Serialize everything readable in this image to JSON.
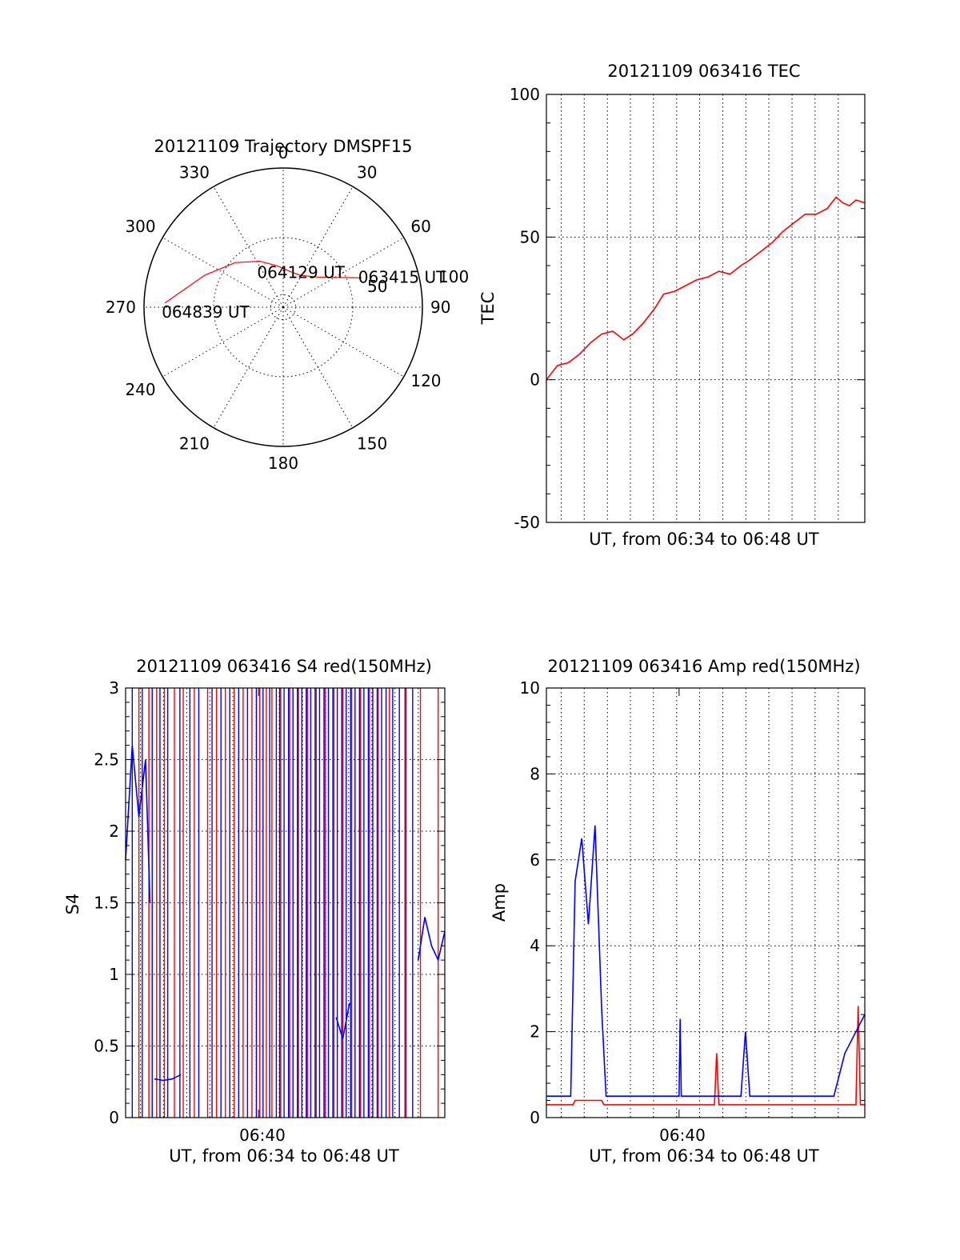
{
  "chart_data": [
    {
      "id": "trajectory",
      "type": "polar",
      "title": "20121109 Trajectory DMSPF15",
      "angle_labels": [
        "0",
        "30",
        "60",
        "90",
        "120",
        "150",
        "180",
        "210",
        "240",
        "270",
        "300",
        "330"
      ],
      "radial_labels": [
        "50",
        "100"
      ],
      "rmax": 100,
      "trajectory": {
        "color": "#ff0000",
        "points": [
          [
            69.5,
            60
          ],
          [
            49,
            33
          ],
          [
            28,
            26
          ],
          [
            12,
            26
          ],
          [
            -8,
            30
          ],
          [
            -27,
            37
          ],
          [
            -47,
            47
          ],
          [
            -68,
            61
          ],
          [
            -88,
            85
          ]
        ]
      },
      "annotations": [
        {
          "text": "063415 UT",
          "az": 69.5,
          "r": 60
        },
        {
          "text": "064129 UT",
          "az": 12,
          "r": 26
        },
        {
          "text": "064839 UT",
          "az": -88,
          "r": 85
        }
      ]
    },
    {
      "id": "tec",
      "type": "line",
      "title": "20121109 063416 TEC",
      "ylabel": "TEC",
      "xlabel": "UT, from 06:34 to 06:48 UT",
      "xlim": [
        0,
        14.4
      ],
      "ylim": [
        -50,
        100
      ],
      "yticks": [
        "100",
        "50",
        "0",
        "-50"
      ],
      "ygrid": [
        50,
        0
      ],
      "xgrid": [
        0.67,
        1.71,
        2.76,
        3.8,
        4.84,
        5.89,
        6.93,
        7.98,
        9.02,
        10.06,
        11.11,
        12.15,
        13.2
      ],
      "series": [
        {
          "color": "#ff0000",
          "x": [
            0,
            0.5,
            1,
            1.5,
            2,
            2.5,
            3,
            3.5,
            3.9,
            4.4,
            4.9,
            5.3,
            5.8,
            6.3,
            6.8,
            7.3,
            7.8,
            8.3,
            8.8,
            9.2,
            9.7,
            10.2,
            10.7,
            11.2,
            11.7,
            12.2,
            12.7,
            13.1,
            13.4,
            13.7,
            14.0,
            14.4
          ],
          "y": [
            0,
            5,
            6,
            9,
            13,
            16,
            17,
            14,
            16,
            20,
            25,
            30,
            31,
            33,
            35,
            36,
            38,
            37,
            40,
            42,
            45,
            48,
            52,
            55,
            58,
            58,
            60,
            64,
            62,
            61,
            63,
            62
          ]
        }
      ]
    },
    {
      "id": "s4",
      "type": "line",
      "title": "20121109 063416 S4 red(150MHz)",
      "ylabel": "S4",
      "xlabel": "UT, from 06:34 to 06:48 UT",
      "xtick_label": "06:40",
      "xtick_value": 6,
      "xlim": [
        0,
        14.4
      ],
      "ylim": [
        0,
        3
      ],
      "yticks": [
        "3",
        "2.5",
        "2",
        "1.5",
        "1",
        "0.5",
        "0"
      ],
      "ygrid": [
        2.5,
        2,
        1.5,
        1,
        0.5
      ],
      "xgrid": [
        0.67,
        1.71,
        2.76,
        3.8,
        4.84,
        5.89,
        6.93,
        7.98,
        9.02,
        10.06,
        11.11,
        12.15,
        13.2
      ],
      "spikes": [
        {
          "color": "#ff0000",
          "x": [
            0.6,
            1.05,
            1.4,
            1.75,
            2.2,
            2.6,
            3.1,
            3.7,
            4.1,
            4.5,
            4.9,
            5.3,
            5.7,
            6.05,
            6.35,
            6.6,
            7.0,
            7.4,
            7.8,
            8.2,
            8.6,
            9.0,
            9.4,
            9.8,
            10.2,
            10.6,
            11.0,
            11.4,
            11.9,
            12.6,
            13.3,
            14.1
          ]
        },
        {
          "color": "#0000ff",
          "x": [
            0.3,
            0.75,
            1.2,
            1.55,
            1.9,
            2.45,
            2.9,
            3.3,
            3.9,
            4.3,
            4.7,
            5.1,
            5.5,
            5.9,
            6.2,
            6.5,
            6.8,
            6.95,
            7.15,
            7.35,
            7.55,
            7.75,
            7.95,
            8.15,
            8.35,
            8.55,
            8.75,
            8.95,
            9.15,
            9.35,
            9.55,
            9.75,
            9.95,
            10.15,
            10.35,
            10.55,
            10.75,
            10.95,
            11.15,
            11.35,
            11.55,
            11.75,
            12.05,
            12.35,
            12.65,
            12.95
          ]
        }
      ],
      "series": [
        {
          "color": "#0000ff",
          "x": [
            0,
            0.3,
            0.6,
            0.9,
            1.1
          ],
          "y": [
            1.8,
            2.6,
            2.1,
            2.5,
            1.5
          ]
        },
        {
          "color": "#0000ff",
          "x": [
            1.3,
            1.7,
            2.1,
            2.5
          ],
          "y": [
            0.27,
            0.26,
            0.27,
            0.3
          ]
        },
        {
          "color": "#0000ff",
          "x": [
            9.5,
            9.8,
            10.1
          ],
          "y": [
            0.7,
            0.55,
            0.8
          ]
        },
        {
          "color": "#0000ff",
          "x": [
            13.2,
            13.5,
            13.8,
            14.1,
            14.4
          ],
          "y": [
            1.1,
            1.4,
            1.2,
            1.1,
            1.3
          ]
        }
      ]
    },
    {
      "id": "amp",
      "type": "line",
      "title": "20121109 063416 Amp red(150MHz)",
      "ylabel": "Amp",
      "xlabel": "UT, from 06:34 to 06:48 UT",
      "xtick_label": "06:40",
      "xtick_value": 6,
      "xlim": [
        0,
        14.4
      ],
      "ylim": [
        0,
        10
      ],
      "yticks": [
        "10",
        "8",
        "6",
        "4",
        "2",
        "0"
      ],
      "ygrid": [
        8,
        6,
        4,
        2
      ],
      "xgrid": [
        0.67,
        1.71,
        2.76,
        3.8,
        4.84,
        5.89,
        6.93,
        7.98,
        9.02,
        10.06,
        11.11,
        12.15,
        13.2
      ],
      "series": [
        {
          "color": "#ff0000",
          "x": [
            0,
            1.2,
            1.3,
            2.5,
            2.6,
            6.0,
            7.6,
            7.7,
            7.8,
            14.0,
            14.1,
            14.2,
            14.4
          ],
          "y": [
            0.3,
            0.3,
            0.4,
            0.4,
            0.3,
            0.3,
            0.3,
            1.5,
            0.3,
            0.3,
            2.6,
            0.3,
            0.3
          ]
        },
        {
          "color": "#0000ff",
          "x": [
            0,
            1.1,
            1.3,
            1.6,
            1.9,
            2.2,
            2.5,
            2.7,
            6.0,
            6.05,
            6.1,
            8.8,
            9.0,
            9.2,
            13.0,
            13.5,
            14.4
          ],
          "y": [
            0.5,
            0.5,
            5.5,
            6.5,
            4.5,
            6.8,
            2.5,
            0.5,
            0.5,
            2.3,
            0.5,
            0.5,
            2.0,
            0.5,
            0.5,
            1.5,
            2.4
          ]
        }
      ]
    }
  ]
}
